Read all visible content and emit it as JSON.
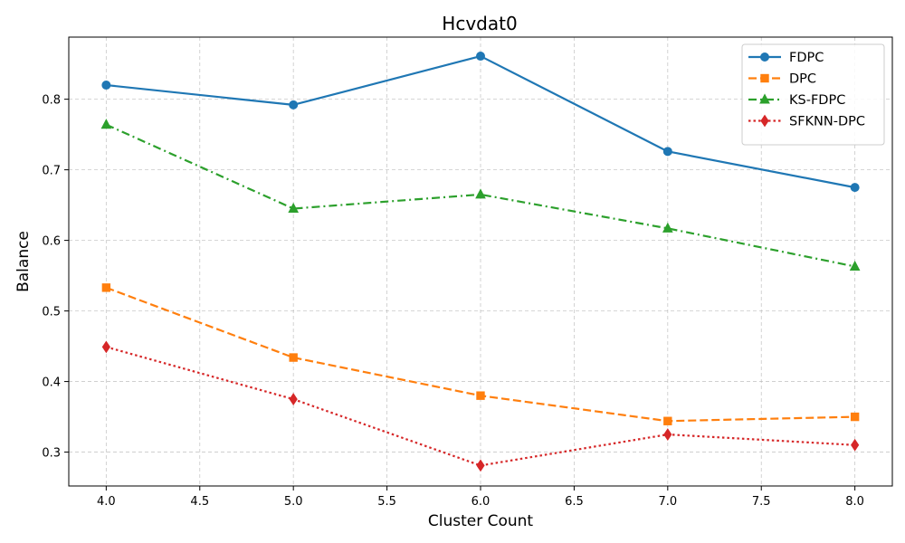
{
  "chart_data": {
    "type": "line",
    "title": "Hcvdat0",
    "xlabel": "Cluster Count",
    "ylabel": "Balance",
    "x": [
      4.0,
      5.0,
      6.0,
      7.0,
      8.0
    ],
    "xlim": [
      3.8,
      8.2
    ],
    "ylim": [
      0.252,
      0.888
    ],
    "xticks": [
      "4.0",
      "4.5",
      "5.0",
      "5.5",
      "6.0",
      "6.5",
      "7.0",
      "7.5",
      "8.0"
    ],
    "yticks": [
      "0.3",
      "0.4",
      "0.5",
      "0.6",
      "0.7",
      "0.8"
    ],
    "grid": true,
    "legend_position": "top-right",
    "series": [
      {
        "name": "FDPC",
        "values": [
          0.82,
          0.792,
          0.861,
          0.726,
          0.675
        ],
        "color": "#1f77b4",
        "marker": "circle",
        "line": "solid"
      },
      {
        "name": "DPC",
        "values": [
          0.533,
          0.434,
          0.38,
          0.344,
          0.35
        ],
        "color": "#ff7f0e",
        "marker": "square",
        "line": "dashed"
      },
      {
        "name": "KS-FDPC",
        "values": [
          0.764,
          0.645,
          0.665,
          0.617,
          0.563
        ],
        "color": "#2ca02c",
        "marker": "triangle",
        "line": "dashdot"
      },
      {
        "name": "SFKNN-DPC",
        "values": [
          0.449,
          0.375,
          0.281,
          0.325,
          0.31
        ],
        "color": "#d62728",
        "marker": "diamond",
        "line": "dotted"
      }
    ]
  }
}
